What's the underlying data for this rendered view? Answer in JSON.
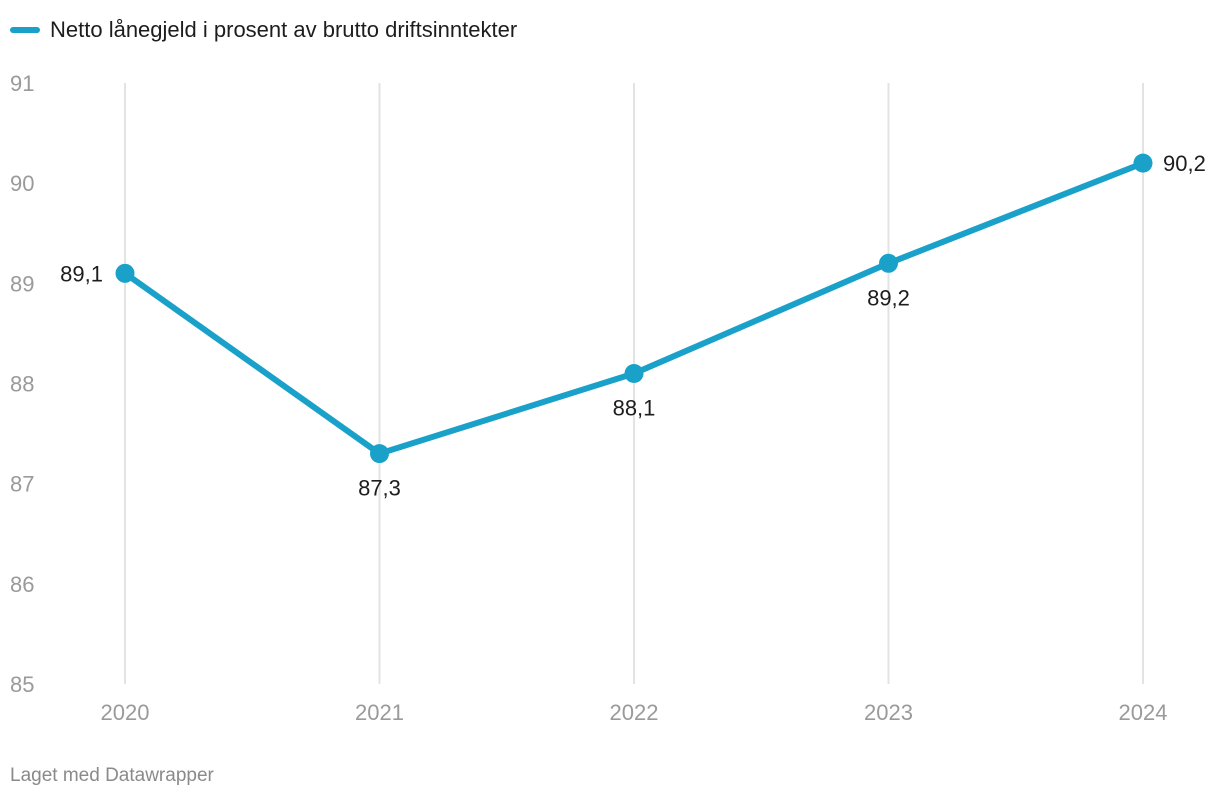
{
  "chart_data": {
    "type": "line",
    "title": "",
    "xlabel": "",
    "ylabel": "",
    "categories": [
      "2020",
      "2021",
      "2022",
      "2023",
      "2024"
    ],
    "series": [
      {
        "name": "Netto lånegjeld i prosent av brutto driftsinntekter",
        "values": [
          89.1,
          87.3,
          88.1,
          89.2,
          90.2
        ],
        "labels": [
          "89,1",
          "87,3",
          "88,1",
          "89,2",
          "90,2"
        ],
        "color": "#1aa1c9"
      }
    ],
    "ylim": [
      85,
      91
    ],
    "yticks": [
      85,
      86,
      87,
      88,
      89,
      90,
      91
    ],
    "ytick_labels": [
      "85",
      "86",
      "87",
      "88",
      "89",
      "90",
      "91"
    ],
    "grid": "vertical",
    "legend": "top-left"
  },
  "footer": {
    "credit": "Laget med Datawrapper"
  },
  "colors": {
    "series": "#1aa1c9",
    "grid": "#e3e3e3",
    "axis_text": "#9a9a9a",
    "label_text": "#1d1d1d",
    "footer_text": "#8a8a8a"
  }
}
